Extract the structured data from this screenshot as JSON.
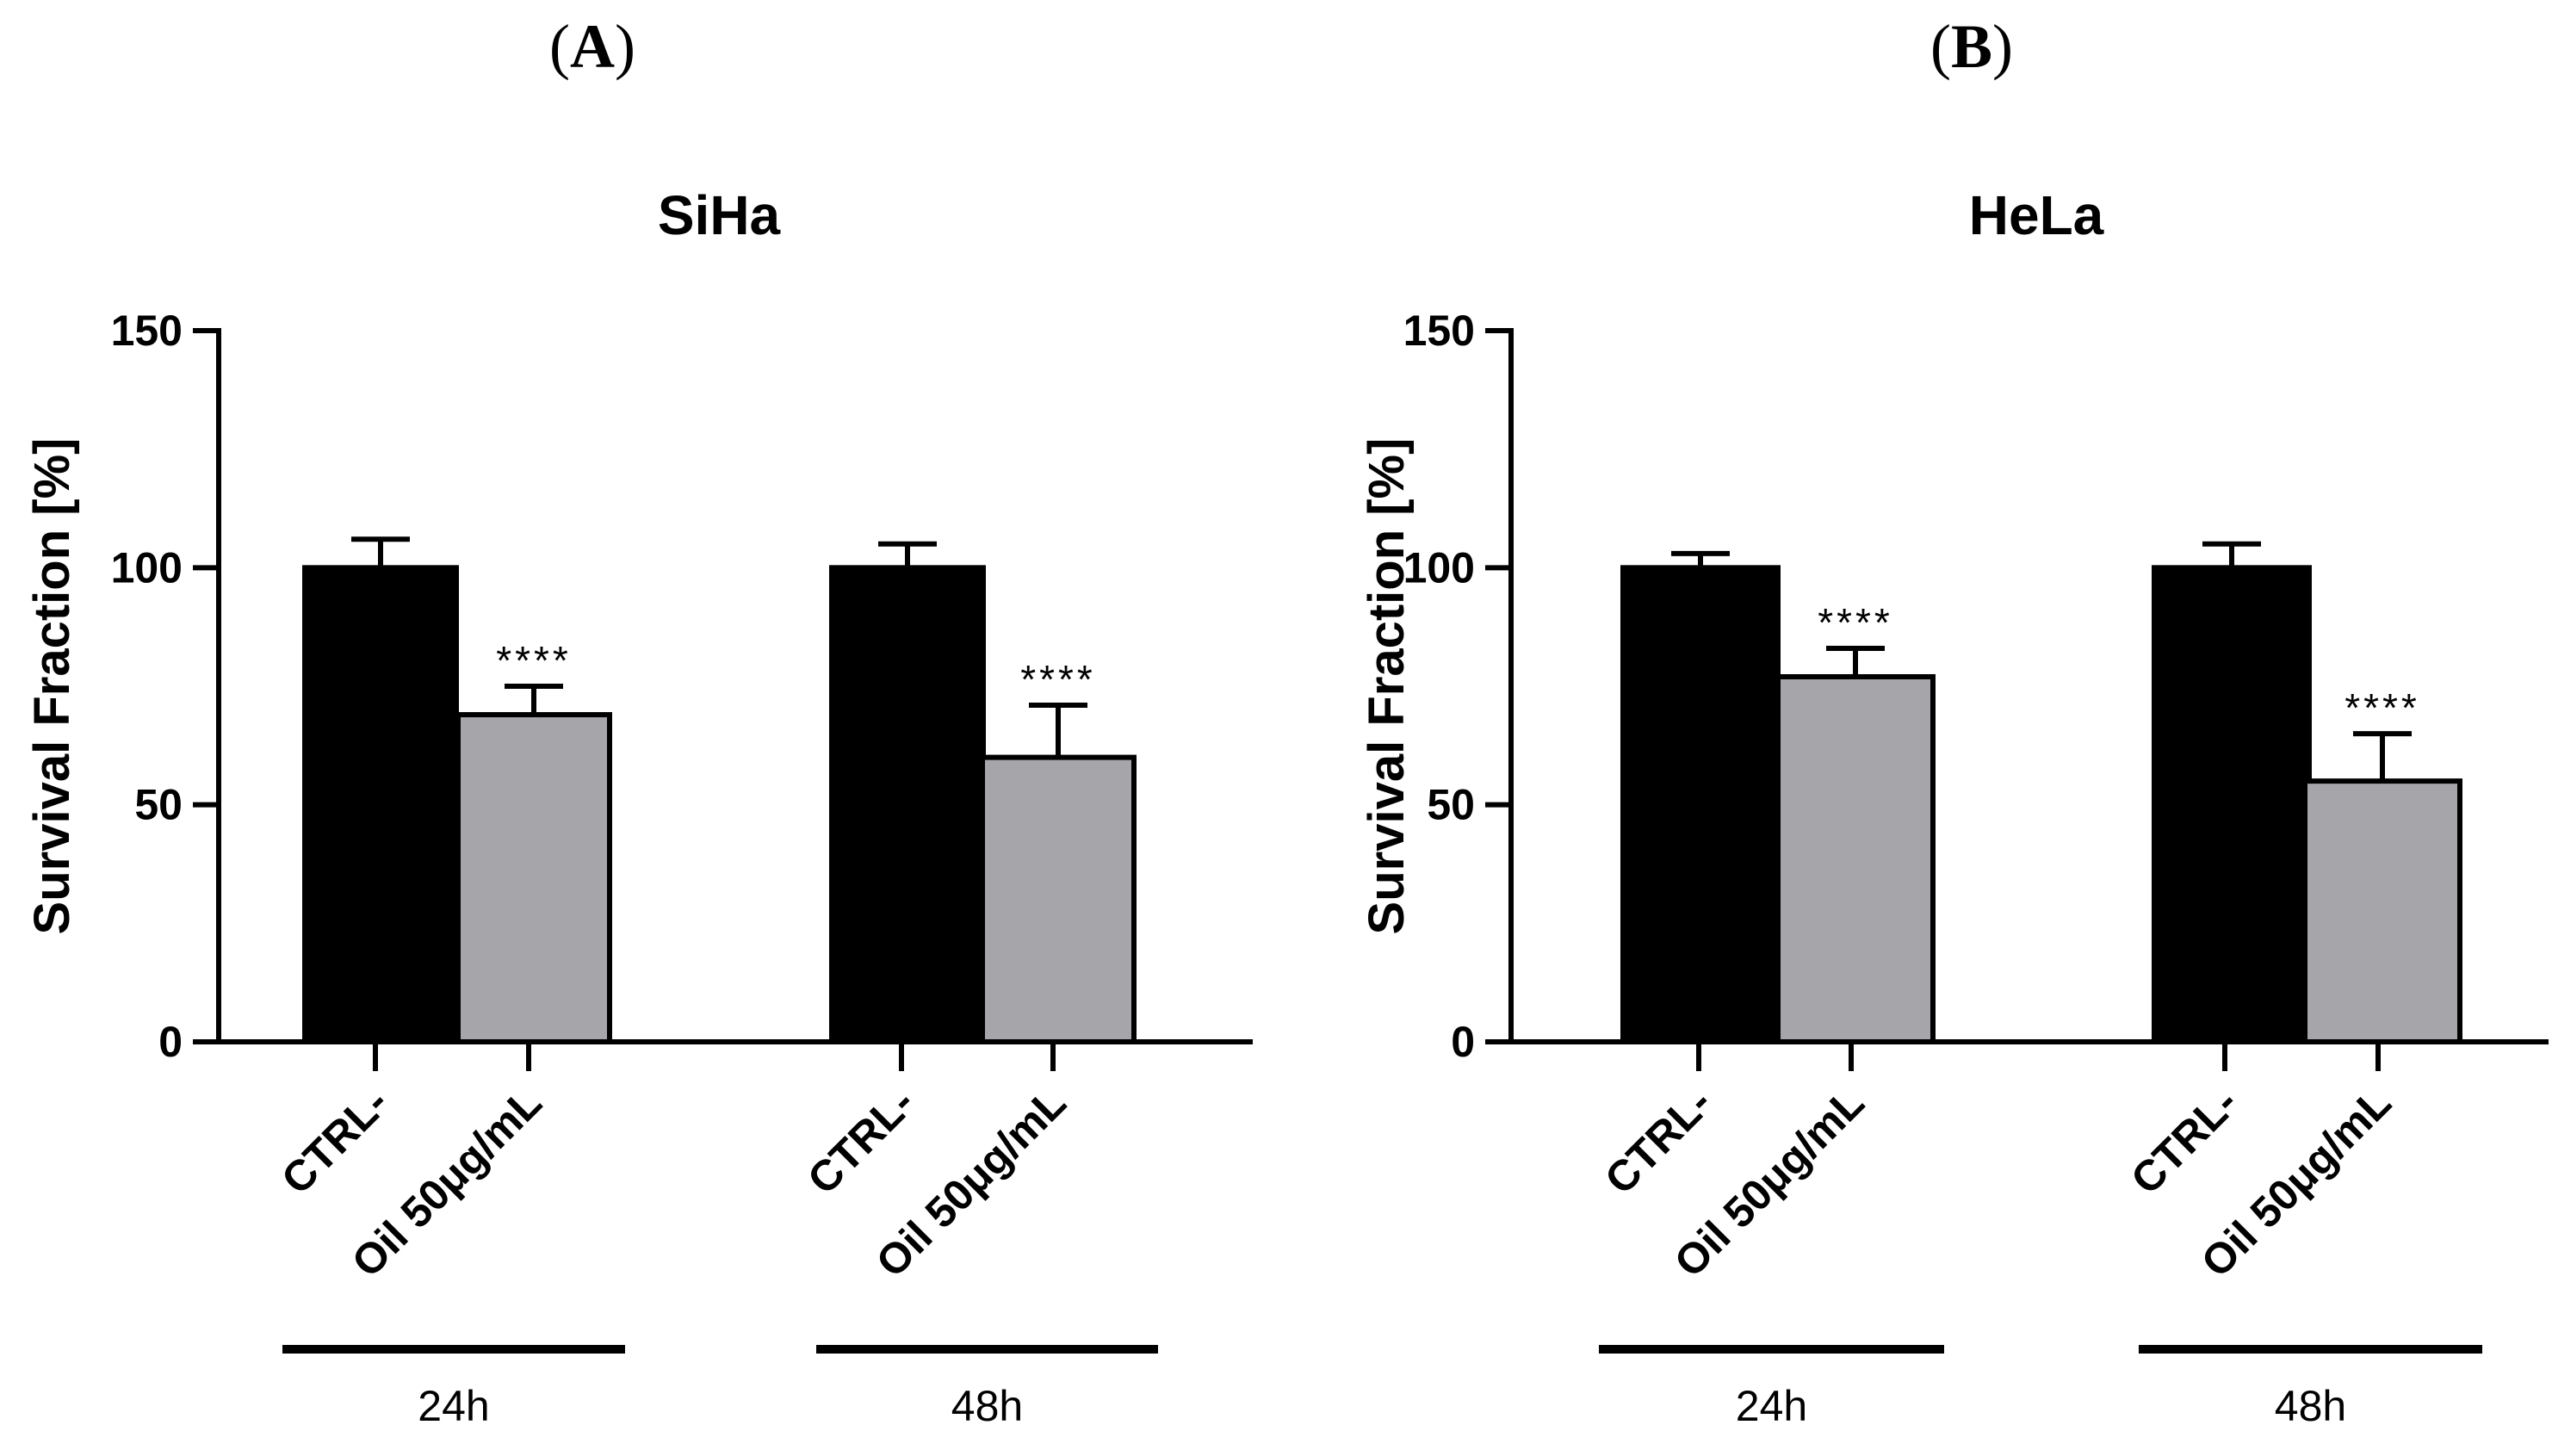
{
  "chart_data": [
    {
      "panel": "(A)",
      "type": "bar",
      "title": "SiHa",
      "xlabel": "",
      "ylabel": "Survival Fraction [%]",
      "ylim": [
        0,
        150
      ],
      "yticks": [
        "0",
        "50",
        "100",
        "150"
      ],
      "categories": [
        "CTRL-",
        "Oil 50μg/mL",
        "CTRL-",
        "Oil 50μg/mL"
      ],
      "groups": [
        "24h",
        "48h"
      ],
      "values": [
        100,
        69,
        100,
        60
      ],
      "errors": [
        6,
        6,
        5,
        11
      ],
      "significance": [
        "",
        "****",
        "",
        "****"
      ],
      "colors": [
        "#000000",
        "#a6a5a9",
        "#000000",
        "#a6a5a9"
      ]
    },
    {
      "panel": "(B)",
      "type": "bar",
      "title": "HeLa",
      "xlabel": "",
      "ylabel": "Survival Fraction [%]",
      "ylim": [
        0,
        150
      ],
      "yticks": [
        "0",
        "50",
        "100",
        "150"
      ],
      "categories": [
        "CTRL-",
        "Oil 50μg/mL",
        "CTRL-",
        "Oil 50μg/mL"
      ],
      "groups": [
        "24h",
        "48h"
      ],
      "values": [
        100,
        77,
        100,
        55
      ],
      "errors": [
        3,
        6,
        5,
        10
      ],
      "significance": [
        "",
        "****",
        "",
        "****"
      ],
      "colors": [
        "#000000",
        "#a6a5a9",
        "#000000",
        "#a6a5a9"
      ]
    }
  ]
}
